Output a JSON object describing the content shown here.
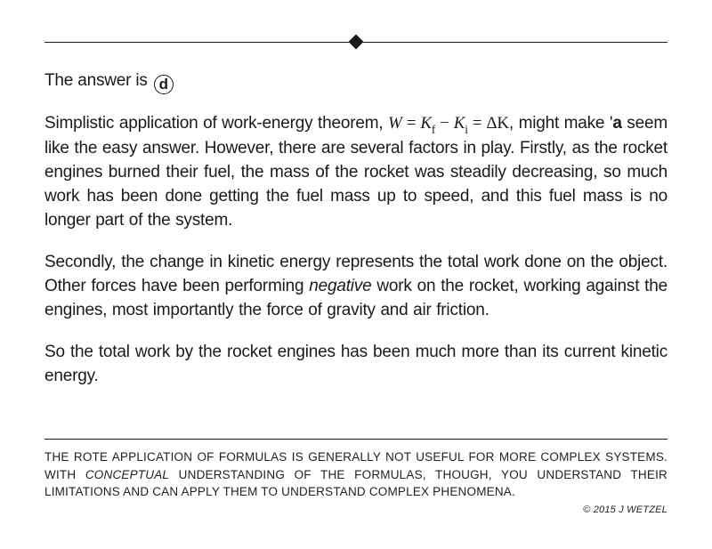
{
  "answer": {
    "prefix": "The answer is",
    "letter": "d"
  },
  "paragraphs": {
    "p1_a": "Simplistic application of work-energy theorem, ",
    "p1_formula_W": "W",
    "p1_formula_eq1": " = ",
    "p1_formula_Kf": "K",
    "p1_formula_Kf_sub": "f",
    "p1_formula_minus": " − ",
    "p1_formula_Ki": "K",
    "p1_formula_Ki_sub": "i",
    "p1_formula_eq2": " = ",
    "p1_formula_dK": "ΔK",
    "p1_b": ", might make ",
    "p1_tick": "'",
    "p1_bold_a": "a",
    "p1_c": " seem like the easy answer.  However, there are several factors in play.  Firstly, as the rocket engines burned their fuel, the mass of the rocket was steadily decreasing, so much work has been done getting the fuel mass up to speed, and this fuel mass is no longer part of the system.",
    "p2_a": "Secondly, the change in kinetic energy represents the total work done on the object.  Other forces have been performing ",
    "p2_neg": "negative",
    "p2_b": " work on the rocket, working against the engines, most importantly the force of gravity and air friction.",
    "p3": "So the total work by the rocket engines has been much more than its current kinetic energy."
  },
  "footer": {
    "line_a": "THE ROTE APPLICATION OF FORMULAS IS GENERALLY NOT USEFUL FOR MORE COMPLEX SYSTEMS.  WITH ",
    "line_conceptual": "CONCEPTUAL",
    "line_b": " UNDERSTANDING OF THE FORMULAS, THOUGH, YOU UNDERSTAND THEIR LIMITATIONS AND CAN APPLY THEM TO UNDERSTAND COMPLEX PHENOMENA.",
    "copyright": "© 2015 J WETZEL"
  },
  "colors": {
    "text": "#1a1a1a",
    "background": "#ffffff",
    "rule": "#1a1a1a"
  },
  "typography": {
    "body_fontsize": 19,
    "footer_fontsize": 13.5,
    "copyright_fontsize": 11
  }
}
